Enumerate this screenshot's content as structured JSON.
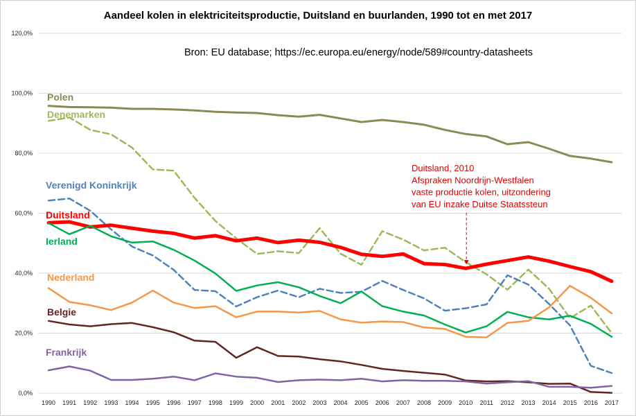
{
  "chart_data": {
    "type": "line",
    "title": "Aandeel kolen in elektriciteitsproductie, Duitsland en buurlanden, 1990 tot en met 2017",
    "source": "Bron: EU database; https://ec.europa.eu/energy/node/589#country-datasheets",
    "xlabel": "",
    "ylabel": "",
    "ylim": [
      0,
      120
    ],
    "yticks": [
      0,
      20,
      40,
      60,
      80,
      100,
      120
    ],
    "ytick_labels": [
      "0,0%",
      "20,0%",
      "40,0%",
      "60,0%",
      "80,0%",
      "100,0%",
      "120,0%"
    ],
    "grid": true,
    "x": [
      "1990",
      "1991",
      "1992",
      "1993",
      "1994",
      "1995",
      "1996",
      "1997",
      "1998",
      "1999",
      "2000",
      "2001",
      "2002",
      "2003",
      "2004",
      "2005",
      "2006",
      "2007",
      "2008",
      "2009",
      "2010",
      "2011",
      "2012",
      "2013",
      "2014",
      "2015",
      "2016",
      "2017"
    ],
    "series": [
      {
        "name": "Polen",
        "color": "#8c8a54",
        "dash": false,
        "width": 3,
        "values": [
          95.8,
          95.4,
          95.3,
          95.2,
          94.8,
          94.8,
          94.6,
          94.3,
          93.8,
          93.6,
          93.4,
          92.7,
          92.2,
          92.8,
          91.6,
          90.4,
          91.1,
          90.4,
          89.5,
          87.8,
          86.4,
          85.6,
          83.0,
          83.7,
          81.5,
          79.1,
          78.2,
          77.0
        ]
      },
      {
        "name": "Denemarken",
        "color": "#9bbb59",
        "dash": true,
        "width": 2.5,
        "values": [
          90.8,
          91.9,
          87.8,
          86.3,
          81.9,
          74.6,
          74.2,
          65.1,
          57.4,
          51.6,
          46.4,
          47.3,
          46.7,
          55.0,
          46.5,
          42.8,
          54.0,
          51.2,
          47.6,
          48.5,
          43.7,
          39.6,
          34.5,
          41.2,
          34.8,
          25.0,
          29.2,
          20.0
        ]
      },
      {
        "name": "Verenigd Koninkrijk",
        "color": "#4f81bd",
        "dash": true,
        "width": 2.5,
        "values": [
          64.2,
          64.9,
          60.8,
          54.6,
          48.9,
          45.9,
          41.1,
          34.4,
          34.0,
          28.9,
          32.0,
          34.2,
          32.0,
          34.8,
          33.4,
          33.8,
          37.4,
          34.4,
          31.6,
          27.5,
          28.3,
          29.6,
          39.3,
          36.2,
          29.7,
          22.6,
          9.1,
          6.7
        ]
      },
      {
        "name": "Duitsland",
        "color": "#ff0000",
        "dash": false,
        "width": 5,
        "values": [
          56.8,
          57.1,
          55.4,
          56.0,
          55.0,
          54.0,
          53.3,
          51.7,
          52.5,
          50.8,
          51.7,
          50.2,
          51.0,
          50.3,
          48.6,
          46.3,
          45.6,
          46.4,
          43.2,
          42.9,
          41.6,
          43.0,
          44.2,
          45.4,
          44.0,
          42.2,
          40.5,
          37.3
        ]
      },
      {
        "name": "Ierland",
        "color": "#00b050",
        "dash": false,
        "width": 2.5,
        "values": [
          56.7,
          53.0,
          55.8,
          52.3,
          50.2,
          50.6,
          47.8,
          44.2,
          39.9,
          34.1,
          35.9,
          37.0,
          35.3,
          32.4,
          30.0,
          33.9,
          29.0,
          27.2,
          25.9,
          22.9,
          20.2,
          22.3,
          27.1,
          25.3,
          24.6,
          25.8,
          23.1,
          18.8
        ]
      },
      {
        "name": "Nederland",
        "color": "#f79646",
        "dash": false,
        "width": 2.5,
        "values": [
          35.0,
          30.4,
          29.3,
          27.7,
          30.2,
          34.2,
          30.2,
          28.4,
          29.0,
          25.3,
          27.2,
          27.2,
          26.9,
          27.4,
          24.6,
          23.5,
          23.9,
          23.7,
          21.9,
          21.4,
          18.8,
          18.6,
          23.4,
          24.1,
          28.6,
          35.8,
          31.8,
          26.6
        ]
      },
      {
        "name": "Belgie",
        "color": "#632523",
        "dash": false,
        "width": 2.5,
        "values": [
          24.1,
          22.9,
          22.3,
          23.0,
          23.4,
          22.0,
          20.3,
          17.5,
          17.1,
          11.8,
          15.3,
          12.4,
          12.2,
          11.3,
          10.6,
          9.4,
          8.1,
          7.4,
          6.8,
          6.2,
          4.2,
          3.9,
          4.0,
          3.6,
          3.1,
          3.2,
          0.4,
          0.1
        ]
      },
      {
        "name": "Frankrijk",
        "color": "#8064a2",
        "dash": false,
        "width": 2.5,
        "values": [
          7.6,
          8.9,
          7.5,
          4.4,
          4.4,
          4.8,
          5.5,
          4.3,
          6.6,
          5.5,
          5.1,
          3.7,
          4.3,
          4.5,
          4.3,
          4.8,
          3.9,
          4.3,
          4.1,
          4.1,
          3.9,
          3.2,
          3.6,
          4.0,
          2.1,
          2.1,
          1.8,
          2.4
        ]
      }
    ],
    "series_labels": [
      {
        "series": "Polen",
        "text": "Polen",
        "color": "#8c8a54"
      },
      {
        "series": "Denemarken",
        "text": "Denemarken",
        "color": "#9bbb59"
      },
      {
        "series": "Verenigd Koninkrijk",
        "text": "Verenigd Koninkrijk",
        "color": "#4f81bd"
      },
      {
        "series": "Duitsland",
        "text": "Duitsland",
        "color": "#ff0000"
      },
      {
        "series": "Ierland",
        "text": "Ierland",
        "color": "#00b050"
      },
      {
        "series": "Nederland",
        "text": "Nederland",
        "color": "#f79646"
      },
      {
        "series": "Belgie",
        "text": "Belgie",
        "color": "#632523"
      },
      {
        "series": "Frankrijk",
        "text": "Frankrijk",
        "color": "#8064a2"
      }
    ],
    "annotation": {
      "lines": [
        "Duitsland, 2010",
        "Afspraken Noordrijn-Westfalen",
        "vaste productie kolen, uitzondering",
        "van EU inzake Duitse Staatssteun"
      ],
      "color": "#e00000",
      "target_x": "2010",
      "target_series": "Duitsland"
    }
  }
}
